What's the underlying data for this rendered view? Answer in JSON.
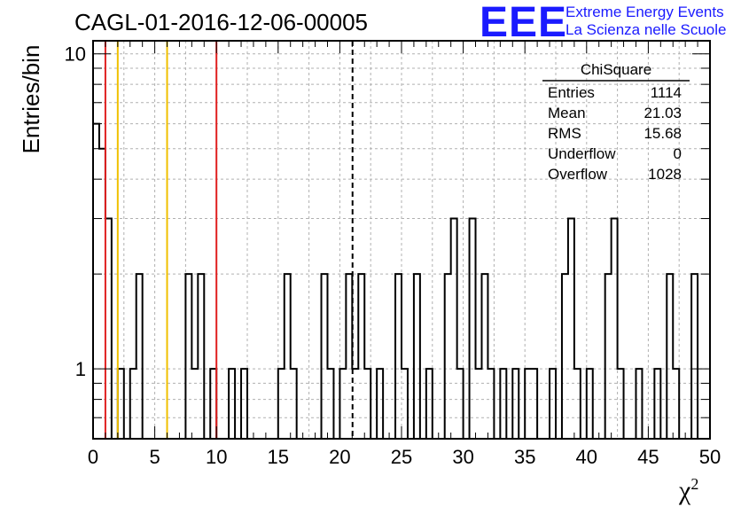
{
  "chart_data": {
    "type": "histogram",
    "title": "CAGL-01-2016-12-06-00005",
    "xlabel": "χ",
    "xlabel_superscript": "2",
    "ylabel": "Entries/bin",
    "xlim": [
      0,
      50
    ],
    "ylim_log": [
      0.6,
      11
    ],
    "log_y": true,
    "grid": true,
    "bin_width": 0.5,
    "x_ticks": [
      "0",
      "5",
      "10",
      "15",
      "20",
      "25",
      "30",
      "35",
      "40",
      "45",
      "50"
    ],
    "y_ticks": [
      "1",
      "10"
    ],
    "bins": [
      {
        "x": 0,
        "y": 6
      },
      {
        "x": 0.5,
        "y": 5
      },
      {
        "x": 1,
        "y": 3
      },
      {
        "x": 2,
        "y": 1
      },
      {
        "x": 3,
        "y": 1
      },
      {
        "x": 3.5,
        "y": 2
      },
      {
        "x": 7.5,
        "y": 2
      },
      {
        "x": 8,
        "y": 1
      },
      {
        "x": 8.5,
        "y": 2
      },
      {
        "x": 9.5,
        "y": 1
      },
      {
        "x": 11,
        "y": 1
      },
      {
        "x": 12,
        "y": 1
      },
      {
        "x": 15,
        "y": 1
      },
      {
        "x": 15.5,
        "y": 2
      },
      {
        "x": 16,
        "y": 1
      },
      {
        "x": 18.5,
        "y": 2
      },
      {
        "x": 19,
        "y": 1
      },
      {
        "x": 20,
        "y": 1
      },
      {
        "x": 20.5,
        "y": 2
      },
      {
        "x": 21,
        "y": 1
      },
      {
        "x": 21.5,
        "y": 2
      },
      {
        "x": 22,
        "y": 1
      },
      {
        "x": 23,
        "y": 1
      },
      {
        "x": 24.5,
        "y": 2
      },
      {
        "x": 25,
        "y": 1
      },
      {
        "x": 26,
        "y": 2
      },
      {
        "x": 27,
        "y": 1
      },
      {
        "x": 28.5,
        "y": 2
      },
      {
        "x": 29,
        "y": 3
      },
      {
        "x": 29.5,
        "y": 1
      },
      {
        "x": 30.5,
        "y": 3
      },
      {
        "x": 31,
        "y": 1
      },
      {
        "x": 31.5,
        "y": 2
      },
      {
        "x": 32,
        "y": 1
      },
      {
        "x": 33,
        "y": 1
      },
      {
        "x": 34,
        "y": 1
      },
      {
        "x": 35,
        "y": 1
      },
      {
        "x": 35.5,
        "y": 1
      },
      {
        "x": 37,
        "y": 1
      },
      {
        "x": 38,
        "y": 2
      },
      {
        "x": 38.5,
        "y": 3
      },
      {
        "x": 39,
        "y": 1
      },
      {
        "x": 40,
        "y": 1
      },
      {
        "x": 41.5,
        "y": 2
      },
      {
        "x": 42,
        "y": 3
      },
      {
        "x": 42.5,
        "y": 1
      },
      {
        "x": 44,
        "y": 1
      },
      {
        "x": 45.5,
        "y": 1
      },
      {
        "x": 46.5,
        "y": 2
      },
      {
        "x": 47,
        "y": 1
      },
      {
        "x": 48.5,
        "y": 2
      }
    ],
    "vlines": [
      {
        "x": 1,
        "color": "#e02020",
        "style": "solid"
      },
      {
        "x": 2,
        "color": "#f0c000",
        "style": "solid"
      },
      {
        "x": 6,
        "color": "#f0c000",
        "style": "solid"
      },
      {
        "x": 10,
        "color": "#e02020",
        "style": "solid"
      },
      {
        "x": 21.03,
        "color": "#000000",
        "style": "dashed"
      }
    ],
    "stats": {
      "title": "ChiSquare",
      "rows": [
        {
          "label": "Entries",
          "value": "1114"
        },
        {
          "label": "Mean",
          "value": "21.03"
        },
        {
          "label": "RMS",
          "value": "15.68"
        },
        {
          "label": "Underflow",
          "value": "0"
        },
        {
          "label": "Overflow",
          "value": "1028"
        }
      ]
    }
  },
  "logo": {
    "mark": "EEE",
    "line1": "Extreme Energy Events",
    "line2": "La Scienza nelle Scuole",
    "color": "#1a1aff"
  }
}
